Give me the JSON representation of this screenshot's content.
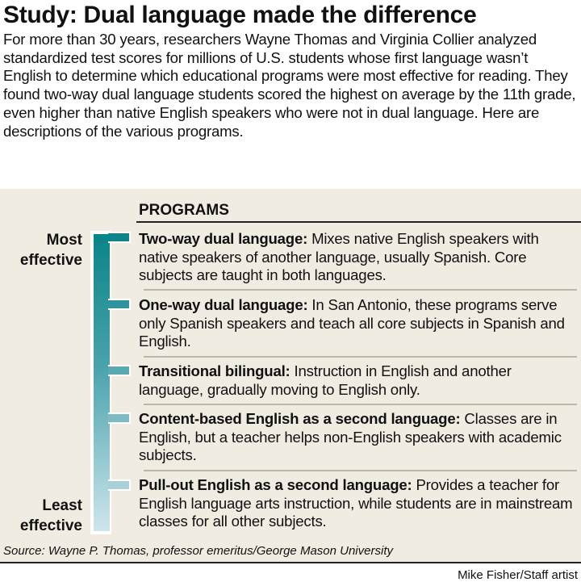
{
  "title": "Study: Dual language made the difference",
  "intro": "For more than 30 years, researchers Wayne Thomas and Virginia Collier analyzed standardized test scores for millions of U.S. students whose first language wasn’t English to determine which educational programs were most effective for reading. They found two-way dual language students scored the highest on average by the 11th grade, even higher than native English speakers who were not in dual language. Here are descriptions of the various programs.",
  "programs_heading": "PROGRAMS",
  "scale": {
    "top_label_1": "Most",
    "top_label_2": "effective",
    "bottom_label_1": "Least",
    "bottom_label_2": "effective",
    "gradient_colors": [
      "#0a8487",
      "#cfe5ec"
    ]
  },
  "programs": [
    {
      "name": "Two-way dual language:",
      "description": " Mixes native English speakers with native speakers of another language, usually Spanish. Core subjects are taught in both languages."
    },
    {
      "name": "One-way dual language:",
      "description": " In San Antonio, these programs serve only Spanish speakers and teach all core subjects in Spanish and English."
    },
    {
      "name": "Transitional bilingual:",
      "description": " Instruction in English and another language, gradually moving to English only."
    },
    {
      "name": "Content-based English as a second language:",
      "description": " Classes are in English, but a teacher helps non-English speakers with academic subjects."
    },
    {
      "name": "Pull-out English as a second language:",
      "description": " Provides a teacher for English language arts instruction, while students are in mainstream classes for all other subjects."
    }
  ],
  "source": "Source: Wayne P. Thomas, professor emeritus/George Mason University",
  "credit": "Mike Fisher/Staff artist"
}
